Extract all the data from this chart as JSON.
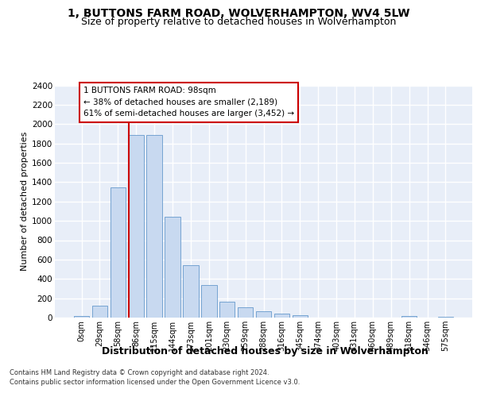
{
  "title": "1, BUTTONS FARM ROAD, WOLVERHAMPTON, WV4 5LW",
  "subtitle": "Size of property relative to detached houses in Wolverhampton",
  "xlabel": "Distribution of detached houses by size in Wolverhampton",
  "ylabel": "Number of detached properties",
  "categories": [
    "0sqm",
    "29sqm",
    "58sqm",
    "86sqm",
    "115sqm",
    "144sqm",
    "173sqm",
    "201sqm",
    "230sqm",
    "259sqm",
    "288sqm",
    "316sqm",
    "345sqm",
    "374sqm",
    "403sqm",
    "431sqm",
    "460sqm",
    "489sqm",
    "518sqm",
    "546sqm",
    "575sqm"
  ],
  "values": [
    15,
    125,
    1345,
    1890,
    1890,
    1045,
    540,
    335,
    165,
    110,
    62,
    38,
    25,
    0,
    0,
    0,
    0,
    0,
    20,
    0,
    12
  ],
  "bar_color": "#c8d9f0",
  "bar_edge_color": "#6699cc",
  "ylim_max": 2400,
  "ytick_step": 200,
  "vline_index": 3,
  "vline_color": "#cc0000",
  "annotation_title": "1 BUTTONS FARM ROAD: 98sqm",
  "annotation_line1": "← 38% of detached houses are smaller (2,189)",
  "annotation_line2": "61% of semi-detached houses are larger (3,452) →",
  "annotation_box_edgecolor": "#cc0000",
  "footer_line1": "Contains HM Land Registry data © Crown copyright and database right 2024.",
  "footer_line2": "Contains public sector information licensed under the Open Government Licence v3.0.",
  "fig_bg_color": "#ffffff",
  "plot_bg_color": "#e8eef8",
  "grid_color": "#ffffff",
  "title_fontsize": 10,
  "subtitle_fontsize": 9,
  "ylabel_fontsize": 8,
  "xlabel_fontsize": 9,
  "tick_fontsize": 7,
  "annot_fontsize": 7.5,
  "footer_fontsize": 6
}
